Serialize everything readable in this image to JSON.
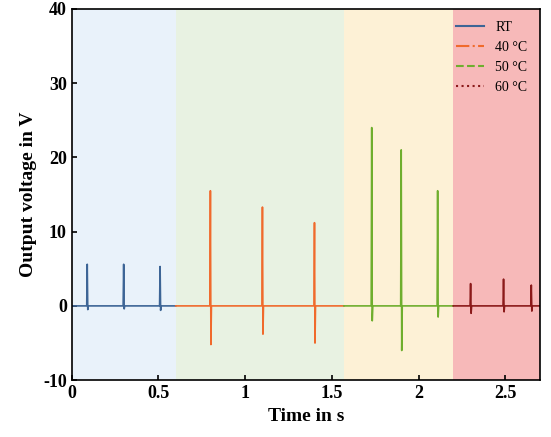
{
  "chart_data": {
    "type": "line",
    "x_label": "Time in s",
    "y_label": "Output voltage in V",
    "xlim": [
      0,
      2.7
    ],
    "xticks": [
      0,
      0.5,
      1,
      1.5,
      2,
      2.5
    ],
    "ylim": [
      -10,
      40
    ],
    "yticks": [
      -10,
      0,
      10,
      20,
      30,
      40
    ],
    "legend": "upper right",
    "series": [
      {
        "name": "RT",
        "color": "#3d6596",
        "line_style": "solid",
        "x": [
          0.0,
          0.087,
          0.09,
          0.093,
          0.096,
          0.297,
          0.3,
          0.303,
          0.306,
          0.507,
          0.51,
          0.513,
          0.516,
          0.6
        ],
        "values": [
          0,
          0,
          5.6,
          -0.5,
          0,
          0,
          5.6,
          -0.4,
          0,
          0,
          5.3,
          -0.6,
          0,
          0
        ]
      },
      {
        "name": "40 °C",
        "color": "#f06a2c",
        "line_style": "dashdot",
        "x": [
          0.6,
          0.797,
          0.8,
          0.803,
          0.806,
          1.097,
          1.1,
          1.103,
          1.106,
          1.397,
          1.4,
          1.403,
          1.406,
          1.57
        ],
        "values": [
          0,
          0,
          15.5,
          -5.2,
          0,
          0,
          13.3,
          -3.8,
          0,
          0,
          11.2,
          -5.0,
          0,
          0
        ]
      },
      {
        "name": "50 °C",
        "color": "#6fae2e",
        "line_style": "dashed",
        "x": [
          1.57,
          1.727,
          1.73,
          1.733,
          1.736,
          1.897,
          1.9,
          1.903,
          1.906,
          2.107,
          2.11,
          2.113,
          2.116,
          2.2
        ],
        "values": [
          0,
          0,
          24.0,
          -2.0,
          0,
          0,
          21.0,
          -6.0,
          0,
          0,
          15.5,
          -1.5,
          0,
          0
        ]
      },
      {
        "name": "60 °C",
        "color": "#8b1a1a",
        "line_style": "dotted",
        "x": [
          2.2,
          2.297,
          2.3,
          2.303,
          2.306,
          2.487,
          2.49,
          2.493,
          2.496,
          2.647,
          2.65,
          2.653,
          2.656,
          2.7
        ],
        "values": [
          0,
          0,
          3.0,
          -1.0,
          0,
          0,
          3.6,
          -0.8,
          0,
          0,
          2.8,
          -0.7,
          0,
          0
        ]
      }
    ]
  }
}
